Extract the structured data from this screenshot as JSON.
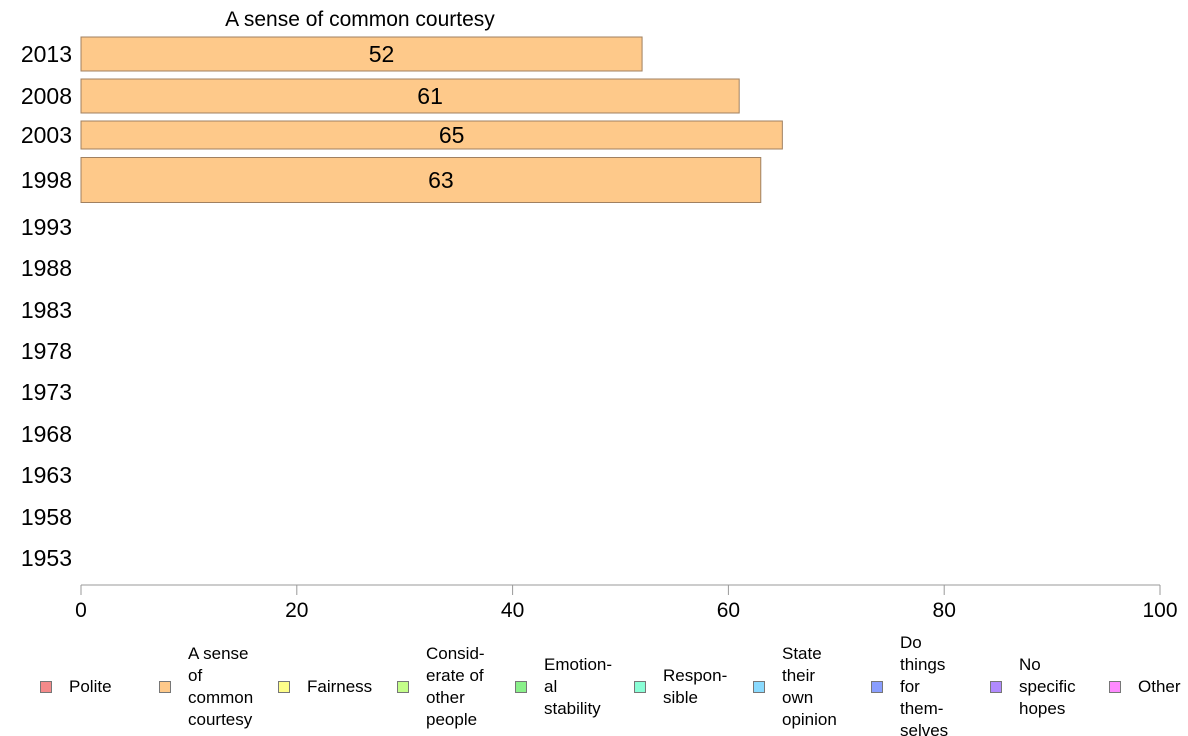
{
  "chart_data": {
    "type": "bar",
    "orientation": "horizontal",
    "title": "A sense of common courtesy",
    "categories": [
      "2013",
      "2008",
      "2003",
      "1998",
      "1993",
      "1988",
      "1983",
      "1978",
      "1973",
      "1968",
      "1963",
      "1958",
      "1953"
    ],
    "series": [
      {
        "name": "A sense of common courtesy",
        "values": [
          52,
          61,
          65,
          63,
          null,
          null,
          null,
          null,
          null,
          null,
          null,
          null,
          null
        ]
      }
    ],
    "data_labels": [
      "52",
      "61",
      "65",
      "63"
    ],
    "xlim": [
      0,
      100
    ],
    "xticks": [
      "0",
      "20",
      "40",
      "60",
      "80",
      "100"
    ],
    "xlabel": "",
    "ylabel": "",
    "grid": false,
    "bar_color": "#fec98a",
    "bar_edge_color": "#a08060",
    "legend_position": "bottom",
    "legend": [
      {
        "label": "Polite",
        "color": "#f48a8a"
      },
      {
        "label": "A sense\nof\ncommon\ncourtesy",
        "color": "#fec98a"
      },
      {
        "label": "Fairness",
        "color": "#fefe8a"
      },
      {
        "label": "Consid-\nerate of\nother\npeople",
        "color": "#c4fe8a"
      },
      {
        "label": "Emotion-\nal\nstability",
        "color": "#8af08a"
      },
      {
        "label": "Respon-\nsible",
        "color": "#8afed6"
      },
      {
        "label": "State\ntheir\nown\nopinion",
        "color": "#8adafe"
      },
      {
        "label": "Do\nthings\nfor\nthem-\nselves",
        "color": "#8a9efe"
      },
      {
        "label": "No\nspecific\nhopes",
        "color": "#b08afe"
      },
      {
        "label": "Other",
        "color": "#fe8afe"
      }
    ]
  }
}
